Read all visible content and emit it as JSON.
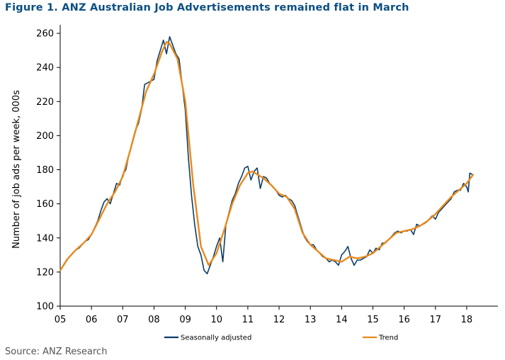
{
  "title": "Figure 1. ANZ Australian Job Advertisements remained flat in March",
  "source": "Source: ANZ Research",
  "colors": {
    "title": "#0b4f82",
    "seasonally_adjusted": "#0e3d66",
    "trend": "#e8891c"
  },
  "chart_data": {
    "type": "line",
    "ylabel": "Number of job ads per week, 000s",
    "xlabel": "",
    "ylim": [
      100,
      265
    ],
    "xlim": [
      2005,
      2018.6
    ],
    "yticks": [
      100,
      120,
      140,
      160,
      180,
      200,
      220,
      240,
      260
    ],
    "xticks": [
      2005,
      2006,
      2007,
      2008,
      2009,
      2010,
      2011,
      2012,
      2013,
      2014,
      2015,
      2016,
      2017,
      2018
    ],
    "xtick_labels": [
      "05",
      "06",
      "07",
      "08",
      "09",
      "10",
      "11",
      "12",
      "13",
      "14",
      "15",
      "16",
      "17",
      "18"
    ],
    "legend_position": "bottom",
    "grid": false,
    "series": [
      {
        "name": "Seasonally adjusted",
        "color": "#0e3d66",
        "points": [
          [
            2005.0,
            121
          ],
          [
            2005.2,
            127
          ],
          [
            2005.4,
            131
          ],
          [
            2005.5,
            133
          ],
          [
            2005.6,
            134
          ],
          [
            2005.8,
            138
          ],
          [
            2005.9,
            139
          ],
          [
            2006.0,
            142
          ],
          [
            2006.2,
            150
          ],
          [
            2006.3,
            156
          ],
          [
            2006.4,
            161
          ],
          [
            2006.5,
            163
          ],
          [
            2006.6,
            160
          ],
          [
            2006.7,
            166
          ],
          [
            2006.8,
            172
          ],
          [
            2006.9,
            171
          ],
          [
            2007.0,
            177
          ],
          [
            2007.1,
            180
          ],
          [
            2007.2,
            189
          ],
          [
            2007.3,
            196
          ],
          [
            2007.4,
            203
          ],
          [
            2007.5,
            207
          ],
          [
            2007.6,
            215
          ],
          [
            2007.7,
            230
          ],
          [
            2007.8,
            231
          ],
          [
            2007.9,
            232
          ],
          [
            2008.0,
            233
          ],
          [
            2008.1,
            244
          ],
          [
            2008.2,
            250
          ],
          [
            2008.3,
            256
          ],
          [
            2008.4,
            248
          ],
          [
            2008.5,
            258
          ],
          [
            2008.6,
            253
          ],
          [
            2008.7,
            248
          ],
          [
            2008.8,
            245
          ],
          [
            2008.9,
            230
          ],
          [
            2009.0,
            215
          ],
          [
            2009.1,
            187
          ],
          [
            2009.2,
            165
          ],
          [
            2009.3,
            148
          ],
          [
            2009.4,
            135
          ],
          [
            2009.5,
            130
          ],
          [
            2009.6,
            121
          ],
          [
            2009.7,
            119
          ],
          [
            2009.8,
            124
          ],
          [
            2009.9,
            129
          ],
          [
            2010.0,
            135
          ],
          [
            2010.1,
            140
          ],
          [
            2010.2,
            126
          ],
          [
            2010.3,
            148
          ],
          [
            2010.4,
            155
          ],
          [
            2010.5,
            162
          ],
          [
            2010.6,
            166
          ],
          [
            2010.7,
            172
          ],
          [
            2010.8,
            176
          ],
          [
            2010.9,
            181
          ],
          [
            2011.0,
            182
          ],
          [
            2011.1,
            174
          ],
          [
            2011.2,
            179
          ],
          [
            2011.3,
            181
          ],
          [
            2011.4,
            169
          ],
          [
            2011.5,
            176
          ],
          [
            2011.6,
            175
          ],
          [
            2011.7,
            172
          ],
          [
            2011.8,
            170
          ],
          [
            2011.9,
            168
          ],
          [
            2012.0,
            165
          ],
          [
            2012.1,
            164
          ],
          [
            2012.2,
            165
          ],
          [
            2012.3,
            163
          ],
          [
            2012.4,
            162
          ],
          [
            2012.5,
            159
          ],
          [
            2012.6,
            153
          ],
          [
            2012.7,
            147
          ],
          [
            2012.8,
            141
          ],
          [
            2012.9,
            138
          ],
          [
            2013.0,
            136
          ],
          [
            2013.1,
            136
          ],
          [
            2013.2,
            133
          ],
          [
            2013.3,
            131
          ],
          [
            2013.4,
            129
          ],
          [
            2013.5,
            128
          ],
          [
            2013.6,
            126
          ],
          [
            2013.7,
            127
          ],
          [
            2013.8,
            126
          ],
          [
            2013.9,
            124
          ],
          [
            2014.0,
            130
          ],
          [
            2014.1,
            132
          ],
          [
            2014.2,
            135
          ],
          [
            2014.3,
            128
          ],
          [
            2014.4,
            124
          ],
          [
            2014.5,
            127
          ],
          [
            2014.6,
            127
          ],
          [
            2014.7,
            128
          ],
          [
            2014.8,
            129
          ],
          [
            2014.9,
            133
          ],
          [
            2015.0,
            131
          ],
          [
            2015.1,
            134
          ],
          [
            2015.2,
            133
          ],
          [
            2015.3,
            137
          ],
          [
            2015.4,
            137
          ],
          [
            2015.5,
            139
          ],
          [
            2015.6,
            141
          ],
          [
            2015.7,
            143
          ],
          [
            2015.8,
            144
          ],
          [
            2015.9,
            143
          ],
          [
            2016.0,
            144
          ],
          [
            2016.1,
            144
          ],
          [
            2016.2,
            145
          ],
          [
            2016.3,
            142
          ],
          [
            2016.4,
            148
          ],
          [
            2016.5,
            147
          ],
          [
            2016.6,
            148
          ],
          [
            2016.7,
            149
          ],
          [
            2016.8,
            151
          ],
          [
            2016.9,
            153
          ],
          [
            2017.0,
            151
          ],
          [
            2017.1,
            155
          ],
          [
            2017.2,
            157
          ],
          [
            2017.3,
            159
          ],
          [
            2017.4,
            161
          ],
          [
            2017.5,
            163
          ],
          [
            2017.6,
            167
          ],
          [
            2017.7,
            168
          ],
          [
            2017.8,
            168
          ],
          [
            2017.9,
            172
          ],
          [
            2018.0,
            170
          ],
          [
            2018.05,
            167
          ],
          [
            2018.1,
            178
          ],
          [
            2018.2,
            177
          ]
        ]
      },
      {
        "name": "Trend",
        "color": "#e8891c",
        "points": [
          [
            2005.0,
            121
          ],
          [
            2005.25,
            128
          ],
          [
            2005.5,
            133
          ],
          [
            2005.75,
            137
          ],
          [
            2006.0,
            142
          ],
          [
            2006.25,
            151
          ],
          [
            2006.5,
            160
          ],
          [
            2006.75,
            167
          ],
          [
            2007.0,
            176
          ],
          [
            2007.25,
            192
          ],
          [
            2007.5,
            209
          ],
          [
            2007.75,
            226
          ],
          [
            2008.0,
            236
          ],
          [
            2008.25,
            249
          ],
          [
            2008.4,
            255
          ],
          [
            2008.5,
            254
          ],
          [
            2008.75,
            245
          ],
          [
            2009.0,
            220
          ],
          [
            2009.25,
            172
          ],
          [
            2009.5,
            135
          ],
          [
            2009.75,
            124
          ],
          [
            2010.0,
            131
          ],
          [
            2010.25,
            145
          ],
          [
            2010.5,
            160
          ],
          [
            2010.75,
            171
          ],
          [
            2011.0,
            178
          ],
          [
            2011.15,
            179
          ],
          [
            2011.5,
            175
          ],
          [
            2011.75,
            171
          ],
          [
            2012.0,
            166
          ],
          [
            2012.25,
            164
          ],
          [
            2012.5,
            157
          ],
          [
            2012.75,
            143
          ],
          [
            2013.0,
            136
          ],
          [
            2013.25,
            132
          ],
          [
            2013.5,
            128
          ],
          [
            2013.75,
            127
          ],
          [
            2014.0,
            126
          ],
          [
            2014.25,
            129
          ],
          [
            2014.5,
            128
          ],
          [
            2014.75,
            129
          ],
          [
            2015.0,
            131
          ],
          [
            2015.25,
            135
          ],
          [
            2015.5,
            139
          ],
          [
            2015.75,
            143
          ],
          [
            2016.0,
            144
          ],
          [
            2016.25,
            145
          ],
          [
            2016.5,
            147
          ],
          [
            2016.75,
            150
          ],
          [
            2017.0,
            154
          ],
          [
            2017.25,
            159
          ],
          [
            2017.5,
            164
          ],
          [
            2017.75,
            168
          ],
          [
            2018.0,
            172
          ],
          [
            2018.2,
            177
          ]
        ]
      }
    ]
  }
}
